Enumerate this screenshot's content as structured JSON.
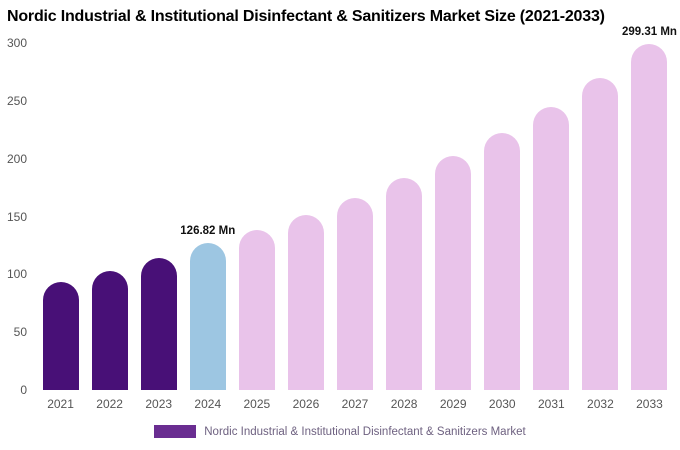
{
  "title": "Nordic Industrial & Institutional Disinfectant & Sanitizers Market Size (2021-2033)",
  "legend": {
    "label": "Nordic Industrial & Institutional Disinfectant & Sanitizers Market",
    "swatch_color": "#6a2d91"
  },
  "chart_data": {
    "type": "bar",
    "title": "Nordic Industrial & Institutional Disinfectant & Sanitizers Market Size (2021-2033)",
    "categories": [
      "2021",
      "2022",
      "2023",
      "2024",
      "2025",
      "2026",
      "2027",
      "2028",
      "2029",
      "2030",
      "2031",
      "2032",
      "2033"
    ],
    "values": [
      93,
      103,
      114,
      126.82,
      138,
      151,
      166,
      183,
      202,
      222,
      245,
      270,
      299.31
    ],
    "unit": "Mn",
    "xlabel": "",
    "ylabel": "",
    "ylim": [
      0,
      300
    ],
    "yticks": [
      0,
      50,
      100,
      150,
      200,
      250,
      300
    ],
    "grid": false,
    "legend_position": "bottom",
    "bar_colors": [
      "#481077",
      "#481077",
      "#481077",
      "#9dc6e2",
      "#e9c3ea",
      "#e9c3ea",
      "#e9c3ea",
      "#e9c3ea",
      "#e9c3ea",
      "#e9c3ea",
      "#e9c3ea",
      "#e9c3ea",
      "#e9c3ea"
    ],
    "annotations": [
      {
        "category": "2024",
        "text": "126.82 Mn"
      },
      {
        "category": "2033",
        "text": "299.31 Mn"
      }
    ]
  }
}
